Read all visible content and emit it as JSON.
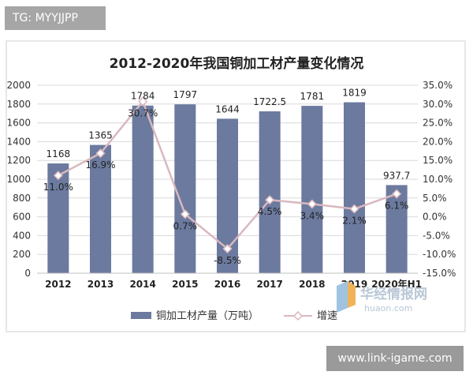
{
  "tags": {
    "top_left": "TG: MYYJJPP",
    "bottom_right": "www.link-igame.com"
  },
  "watermark": {
    "cn": "华经情报网",
    "en": "huaon.com"
  },
  "chart_data": {
    "type": "bar",
    "title": "2012-2020年我国铜加工材产量变化情况",
    "categories": [
      "2012",
      "2013",
      "2014",
      "2015",
      "2016",
      "2017",
      "2018",
      "2019",
      "2020年H1"
    ],
    "series": [
      {
        "name": "铜加工材产量（万吨）",
        "type": "bar",
        "axis": "left",
        "values": [
          1168,
          1365,
          1784,
          1797,
          1644,
          1722.5,
          1781,
          1819,
          937.7
        ],
        "labels": [
          "1168",
          "1365",
          "1784",
          "1797",
          "1644",
          "1722.5",
          "1781",
          "1819",
          "937.7"
        ],
        "color": "#6b7a9e"
      },
      {
        "name": "增速",
        "type": "line",
        "axis": "right",
        "values": [
          11.0,
          16.9,
          30.7,
          0.7,
          -8.5,
          4.5,
          3.4,
          2.1,
          6.1
        ],
        "labels": [
          "11.0%",
          "16.9%",
          "30.7%",
          "0.7%",
          "-8.5%",
          "4.5%",
          "3.4%",
          "2.1%",
          "6.1%"
        ],
        "color": "#d9b8bf"
      }
    ],
    "y_left": {
      "range": [
        0,
        2000
      ],
      "ticks": [
        "0",
        "200",
        "400",
        "600",
        "800",
        "1000",
        "1200",
        "1400",
        "1600",
        "1800",
        "2000"
      ]
    },
    "y_right": {
      "range": [
        -15,
        35
      ],
      "ticks": [
        "-15.0%",
        "-10.0%",
        "-5.0%",
        "0.0%",
        "5.0%",
        "10.0%",
        "15.0%",
        "20.0%",
        "25.0%",
        "30.0%",
        "35.0%"
      ]
    },
    "grid": true,
    "legend_position": "bottom"
  }
}
